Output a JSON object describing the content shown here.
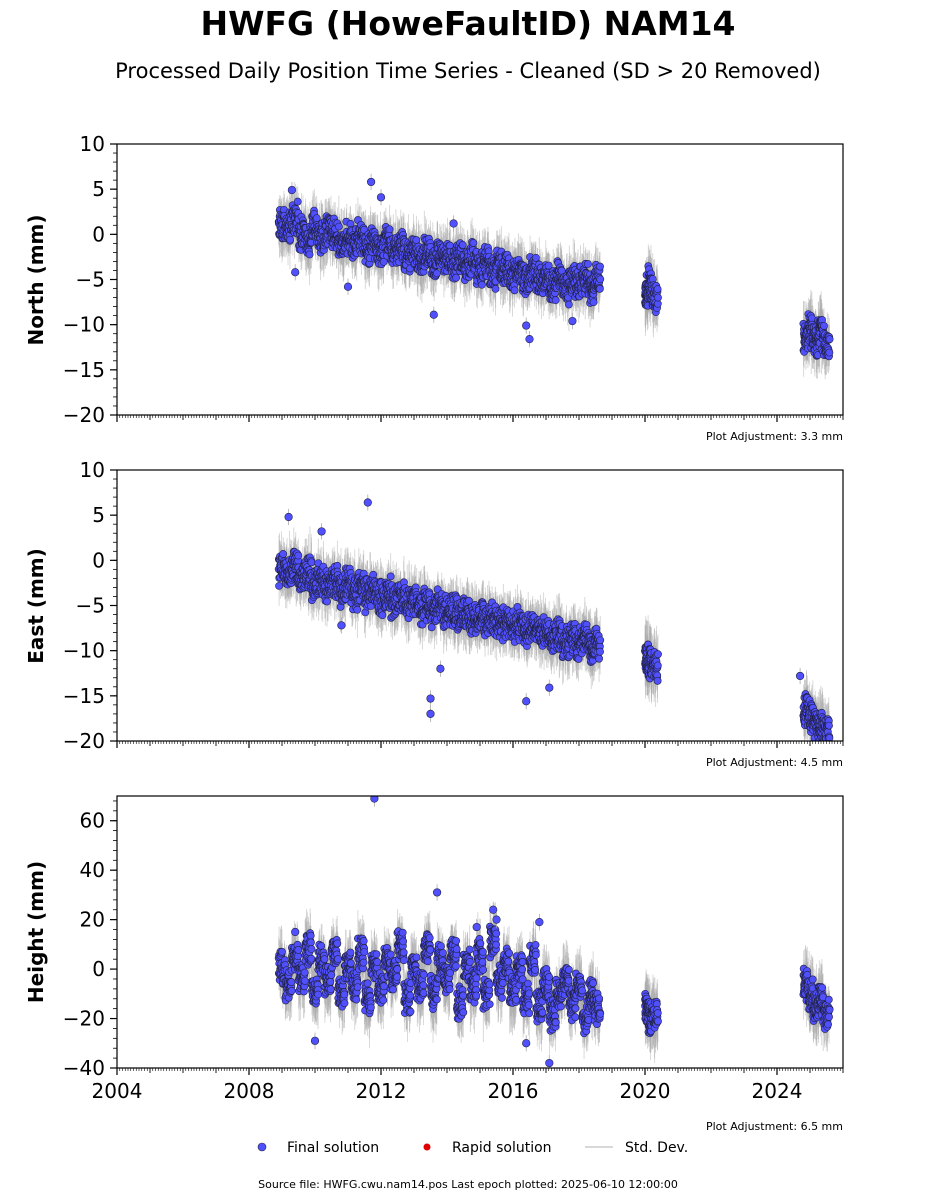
{
  "header": {
    "title": "HWFG (HoweFaultID) NAM14",
    "subtitle": "Processed Daily Position Time Series - Cleaned (SD > 20 Removed)"
  },
  "colors": {
    "final": "#5050ff",
    "final_edge": "#222244",
    "rapid": "#e00000",
    "std": "#aaaaaa"
  },
  "legend": {
    "final": "Final solution",
    "rapid": "Rapid solution",
    "std": "Std. Dev."
  },
  "footer": "Source file: HWFG.cwu.nam14.pos  Last epoch plotted: 2025-06-10 12:00:00",
  "chart_data": [
    {
      "type": "scatter",
      "ylabel": "North (mm)",
      "xlim": [
        2004,
        2026
      ],
      "ylim": [
        -20,
        10
      ],
      "yticks": [
        10,
        5,
        0,
        -5,
        -10,
        -15,
        -20
      ],
      "ytick_labels": [
        "10",
        "5",
        "0",
        "−5",
        "−10",
        "−15",
        "−20"
      ],
      "adjustment": "Plot Adjustment: 3.3 mm",
      "series": [
        {
          "x": [
            2008.9,
            2009.1,
            2009.3,
            2009.5,
            2009.7,
            2009.9,
            2010.1,
            2010.3,
            2010.5,
            2010.7,
            2010.9,
            2011.1,
            2011.3,
            2011.5,
            2011.7,
            2011.9,
            2012.1,
            2012.3,
            2012.5,
            2012.7,
            2012.9,
            2013.1,
            2013.3,
            2013.5,
            2013.7,
            2013.9,
            2014.1,
            2014.3,
            2014.5,
            2014.7,
            2014.9,
            2015.1,
            2015.3,
            2015.5,
            2015.7,
            2015.9,
            2016.1,
            2016.3,
            2016.5,
            2016.7,
            2016.9,
            2017.1,
            2017.3,
            2017.5,
            2017.7,
            2017.9,
            2018.1,
            2018.3,
            2018.45,
            2020.0,
            2020.1,
            2020.2,
            2024.8,
            2024.95,
            2025.1,
            2025.25,
            2025.4
          ],
          "y": [
            1.2,
            0.5,
            1.8,
            0.2,
            -0.6,
            0.9,
            -0.4,
            0.6,
            0.1,
            -1.1,
            -0.3,
            -0.8,
            -0.2,
            -1.5,
            -0.9,
            -1.7,
            -0.7,
            -2.1,
            -1.2,
            -2.5,
            -1.6,
            -2.8,
            -1.9,
            -3.1,
            -2.3,
            -2.6,
            -3.4,
            -2.4,
            -3.2,
            -2.7,
            -3.9,
            -3.1,
            -4.2,
            -3.6,
            -3.8,
            -4.8,
            -4.0,
            -4.9,
            -4.3,
            -5.2,
            -4.6,
            -5.6,
            -4.8,
            -6.1,
            -5.3,
            -5.5,
            -4.9,
            -5.8,
            -5.1,
            -6.2,
            -5.5,
            -6.8,
            -11.2,
            -10.6,
            -11.8,
            -10.9,
            -12.1
          ],
          "yerr": [
            2.0,
            2.2,
            2.1,
            1.9,
            2.3,
            2.0,
            2.2,
            2.1,
            2.0,
            2.3,
            2.1,
            2.2,
            2.0,
            2.4,
            2.1,
            2.2,
            2.0,
            2.3,
            2.1,
            2.2,
            2.0,
            2.3,
            2.1,
            2.2,
            2.0,
            2.1,
            2.2,
            2.0,
            2.3,
            2.1,
            2.2,
            2.0,
            2.1,
            2.2,
            2.0,
            2.3,
            2.1,
            2.2,
            2.0,
            2.1,
            2.2,
            2.0,
            2.3,
            2.1,
            2.2,
            2.0,
            2.1,
            2.2,
            2.0,
            2.4,
            2.2,
            2.3,
            2.1,
            2.2,
            2.0,
            2.3,
            2.1
          ]
        }
      ],
      "outliers": {
        "x": [
          2011.7,
          2009.3,
          2013.6,
          2012.0,
          2016.5,
          2016.4,
          2011.0,
          2017.8,
          2014.2,
          2009.4
        ],
        "y": [
          5.8,
          4.9,
          -8.9,
          4.1,
          -11.6,
          -10.1,
          -5.8,
          -9.6,
          1.2,
          -4.2
        ]
      }
    },
    {
      "type": "scatter",
      "ylabel": "East (mm)",
      "xlim": [
        2004,
        2026
      ],
      "ylim": [
        -20,
        10
      ],
      "yticks": [
        10,
        5,
        0,
        -5,
        -10,
        -15,
        -20
      ],
      "ytick_labels": [
        "10",
        "5",
        "0",
        "−5",
        "−10",
        "−15",
        "−20"
      ],
      "adjustment": "Plot Adjustment: 4.5 mm",
      "series": [
        {
          "x": [
            2008.9,
            2009.1,
            2009.3,
            2009.5,
            2009.7,
            2009.9,
            2010.1,
            2010.3,
            2010.5,
            2010.7,
            2010.9,
            2011.1,
            2011.3,
            2011.5,
            2011.7,
            2011.9,
            2012.1,
            2012.3,
            2012.5,
            2012.7,
            2012.9,
            2013.1,
            2013.3,
            2013.5,
            2013.7,
            2013.9,
            2014.1,
            2014.3,
            2014.5,
            2014.7,
            2014.9,
            2015.1,
            2015.3,
            2015.5,
            2015.7,
            2015.9,
            2016.1,
            2016.3,
            2016.5,
            2016.7,
            2016.9,
            2017.1,
            2017.3,
            2017.5,
            2017.7,
            2017.9,
            2018.1,
            2018.3,
            2018.45,
            2020.0,
            2020.1,
            2020.2,
            2024.8,
            2024.95,
            2025.1,
            2025.25,
            2025.4
          ],
          "y": [
            -1.0,
            -1.6,
            -0.8,
            -2.1,
            -1.4,
            -2.6,
            -1.9,
            -2.9,
            -2.3,
            -3.2,
            -2.7,
            -3.6,
            -3.0,
            -3.8,
            -3.3,
            -4.2,
            -3.7,
            -4.5,
            -4.0,
            -4.9,
            -4.4,
            -5.2,
            -4.7,
            -5.5,
            -5.0,
            -5.8,
            -5.4,
            -6.1,
            -5.7,
            -6.4,
            -6.0,
            -6.7,
            -6.3,
            -7.0,
            -6.6,
            -7.3,
            -7.0,
            -7.7,
            -7.4,
            -8.1,
            -7.8,
            -8.5,
            -8.2,
            -8.9,
            -8.6,
            -9.2,
            -8.9,
            -9.6,
            -9.3,
            -10.8,
            -11.4,
            -11.9,
            -16.6,
            -17.2,
            -17.9,
            -18.4,
            -18.9
          ],
          "yerr": [
            2.0,
            2.2,
            2.1,
            1.9,
            2.3,
            2.0,
            2.2,
            2.1,
            2.0,
            2.3,
            2.1,
            2.2,
            2.0,
            2.4,
            2.1,
            2.2,
            2.0,
            2.3,
            2.1,
            2.2,
            2.0,
            2.3,
            2.1,
            2.2,
            2.0,
            2.1,
            2.2,
            2.0,
            2.3,
            2.1,
            2.2,
            2.0,
            2.1,
            2.2,
            2.0,
            2.3,
            2.1,
            2.2,
            2.0,
            2.1,
            2.2,
            2.0,
            2.3,
            2.1,
            2.2,
            2.0,
            2.1,
            2.2,
            2.0,
            2.4,
            2.2,
            2.3,
            2.1,
            2.2,
            2.0,
            2.3,
            2.1
          ]
        }
      ],
      "outliers": {
        "x": [
          2011.6,
          2009.2,
          2010.2,
          2013.5,
          2013.5,
          2013.8,
          2016.4,
          2017.1,
          2010.8,
          2024.7
        ],
        "y": [
          6.4,
          4.8,
          3.2,
          -15.3,
          -17.0,
          -12.0,
          -15.6,
          -14.1,
          -7.2,
          -12.8
        ]
      }
    },
    {
      "type": "scatter",
      "ylabel": "Height (mm)",
      "xlim": [
        2004,
        2026
      ],
      "ylim": [
        -40,
        70
      ],
      "yticks": [
        60,
        40,
        20,
        0,
        -20,
        -40
      ],
      "ytick_labels": [
        "60",
        "40",
        "20",
        "0",
        "−20",
        "−40"
      ],
      "adjustment": "Plot Adjustment: 6.5 mm",
      "xticks": [
        2004,
        2008,
        2012,
        2016,
        2020,
        2024
      ],
      "xtick_labels": [
        "2004",
        "2008",
        "2012",
        "2016",
        "2020",
        "2024"
      ],
      "series": [
        {
          "x": [
            2008.9,
            2009.1,
            2009.3,
            2009.5,
            2009.7,
            2009.9,
            2010.1,
            2010.3,
            2010.5,
            2010.7,
            2010.9,
            2011.1,
            2011.3,
            2011.5,
            2011.7,
            2011.9,
            2012.1,
            2012.3,
            2012.5,
            2012.7,
            2012.9,
            2013.1,
            2013.3,
            2013.5,
            2013.7,
            2013.9,
            2014.1,
            2014.3,
            2014.5,
            2014.7,
            2014.9,
            2015.1,
            2015.3,
            2015.5,
            2015.7,
            2015.9,
            2016.1,
            2016.3,
            2016.5,
            2016.7,
            2016.9,
            2017.1,
            2017.3,
            2017.5,
            2017.7,
            2017.9,
            2018.1,
            2018.3,
            2018.45,
            2020.0,
            2020.1,
            2020.2,
            2024.8,
            2024.95,
            2025.1,
            2025.25,
            2025.4
          ],
          "y": [
            0,
            -6,
            5,
            -4,
            8,
            -9,
            3,
            -5,
            7,
            -10,
            1,
            -7,
            6,
            -12,
            2,
            -8,
            4,
            -3,
            9,
            -11,
            0,
            -6,
            8,
            -9,
            3,
            -4,
            6,
            -13,
            1,
            -7,
            5,
            -10,
            12,
            -5,
            2,
            -8,
            0,
            -12,
            4,
            -15,
            -6,
            -18,
            -10,
            -4,
            -14,
            -8,
            -19,
            -11,
            -16,
            -15,
            -20,
            -18,
            -6,
            -11,
            -16,
            -13,
            -19
          ],
          "yerr": [
            8,
            9,
            8,
            9,
            8,
            10,
            8,
            9,
            8,
            9,
            8,
            9,
            8,
            10,
            8,
            9,
            8,
            9,
            8,
            9,
            8,
            9,
            8,
            10,
            8,
            9,
            8,
            9,
            8,
            9,
            8,
            9,
            8,
            9,
            8,
            10,
            8,
            9,
            8,
            9,
            8,
            9,
            8,
            9,
            8,
            9,
            8,
            9,
            8,
            9,
            8,
            10,
            8,
            9,
            8,
            9,
            8
          ]
        }
      ],
      "outliers": {
        "x": [
          2011.8,
          2013.7,
          2015.4,
          2015.5,
          2016.8,
          2010.0,
          2017.1,
          2016.4,
          2009.4,
          2014.9
        ],
        "y": [
          69,
          31,
          24,
          20,
          19,
          -29,
          -38,
          -30,
          15,
          17
        ]
      }
    }
  ]
}
